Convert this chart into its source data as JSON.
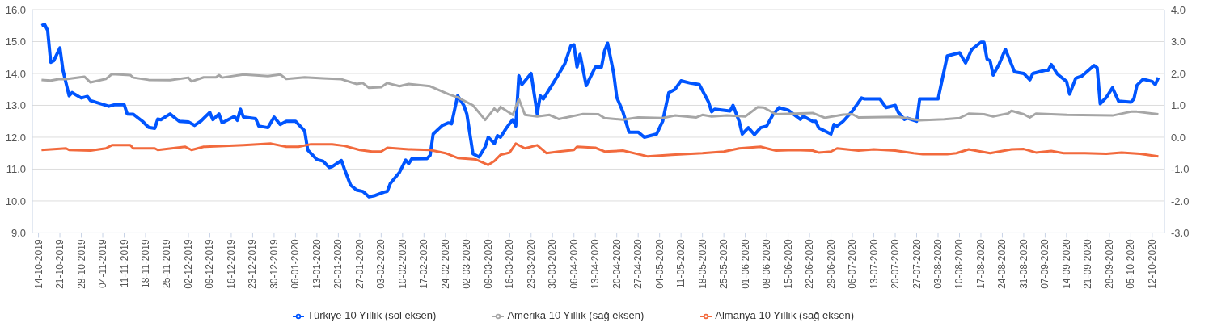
{
  "chart_data": {
    "type": "line",
    "xlim": [
      "2019-10-12",
      "2020-10-16"
    ],
    "xticks": [
      {
        "value": "2019-10-14",
        "label": "14-10-2019"
      },
      {
        "value": "2019-10-21",
        "label": "21-10-2019"
      },
      {
        "value": "2019-10-28",
        "label": "28-10-2019"
      },
      {
        "value": "2019-11-04",
        "label": "04-11-2019"
      },
      {
        "value": "2019-11-11",
        "label": "11-11-2019"
      },
      {
        "value": "2019-11-18",
        "label": "18-11-2019"
      },
      {
        "value": "2019-11-25",
        "label": "25-11-2019"
      },
      {
        "value": "2019-12-02",
        "label": "02-12-2019"
      },
      {
        "value": "2019-12-09",
        "label": "09-12-2019"
      },
      {
        "value": "2019-12-16",
        "label": "16-12-2019"
      },
      {
        "value": "2019-12-23",
        "label": "23-12-2019"
      },
      {
        "value": "2019-12-30",
        "label": "30-12-2019"
      },
      {
        "value": "2020-01-06",
        "label": "06-01-2020"
      },
      {
        "value": "2020-01-13",
        "label": "13-01-2020"
      },
      {
        "value": "2020-01-20",
        "label": "20-01-2020"
      },
      {
        "value": "2020-01-27",
        "label": "27-01-2020"
      },
      {
        "value": "2020-02-03",
        "label": "03-02-2020"
      },
      {
        "value": "2020-02-10",
        "label": "10-02-2020"
      },
      {
        "value": "2020-02-17",
        "label": "17-02-2020"
      },
      {
        "value": "2020-02-24",
        "label": "24-02-2020"
      },
      {
        "value": "2020-03-02",
        "label": "02-03-2020"
      },
      {
        "value": "2020-03-09",
        "label": "09-03-2020"
      },
      {
        "value": "2020-03-16",
        "label": "16-03-2020"
      },
      {
        "value": "2020-03-23",
        "label": "23-03-2020"
      },
      {
        "value": "2020-03-30",
        "label": "30-03-2020"
      },
      {
        "value": "2020-04-06",
        "label": "06-04-2020"
      },
      {
        "value": "2020-04-13",
        "label": "13-04-2020"
      },
      {
        "value": "2020-04-20",
        "label": "20-04-2020"
      },
      {
        "value": "2020-04-27",
        "label": "27-04-2020"
      },
      {
        "value": "2020-05-04",
        "label": "04-05-2020"
      },
      {
        "value": "2020-05-11",
        "label": "11-05-2020"
      },
      {
        "value": "2020-05-18",
        "label": "18-05-2020"
      },
      {
        "value": "2020-05-25",
        "label": "25-05-2020"
      },
      {
        "value": "2020-06-01",
        "label": "01-06-2020"
      },
      {
        "value": "2020-06-08",
        "label": "08-06-2020"
      },
      {
        "value": "2020-06-15",
        "label": "15-06-2020"
      },
      {
        "value": "2020-06-22",
        "label": "22-06-2020"
      },
      {
        "value": "2020-06-29",
        "label": "29-06-2020"
      },
      {
        "value": "2020-07-06",
        "label": "06-07-2020"
      },
      {
        "value": "2020-07-13",
        "label": "13-07-2020"
      },
      {
        "value": "2020-07-20",
        "label": "20-07-2020"
      },
      {
        "value": "2020-07-27",
        "label": "27-07-2020"
      },
      {
        "value": "2020-08-03",
        "label": "03-08-2020"
      },
      {
        "value": "2020-08-10",
        "label": "10-08-2020"
      },
      {
        "value": "2020-08-17",
        "label": "17-08-2020"
      },
      {
        "value": "2020-08-24",
        "label": "24-08-2020"
      },
      {
        "value": "2020-08-31",
        "label": "31-08-2020"
      },
      {
        "value": "2020-09-07",
        "label": "07-09-2020"
      },
      {
        "value": "2020-09-14",
        "label": "14-09-2020"
      },
      {
        "value": "2020-09-21",
        "label": "21-09-2020"
      },
      {
        "value": "2020-09-28",
        "label": "28-09-2020"
      },
      {
        "value": "2020-10-05",
        "label": "05-10-2020"
      },
      {
        "value": "2020-10-12",
        "label": "12-10-2020"
      }
    ],
    "ylim": [
      9,
      16
    ],
    "yticks": [
      {
        "value": 9,
        "label": "9.0"
      },
      {
        "value": 10,
        "label": "10.0"
      },
      {
        "value": 11,
        "label": "11.0"
      },
      {
        "value": 12,
        "label": "12.0"
      },
      {
        "value": 13,
        "label": "13.0"
      },
      {
        "value": 14,
        "label": "14.0"
      },
      {
        "value": 15,
        "label": "15.0"
      },
      {
        "value": 16,
        "label": "16.0"
      }
    ],
    "y2lim": [
      -3,
      4
    ],
    "y2ticks": [
      {
        "value": -3,
        "label": "-3.0"
      },
      {
        "value": -2,
        "label": "-2.0"
      },
      {
        "value": -1,
        "label": "-1.0"
      },
      {
        "value": 0,
        "label": "0.0"
      },
      {
        "value": 1,
        "label": "1.0"
      },
      {
        "value": 2,
        "label": "2.0"
      },
      {
        "value": 3,
        "label": "3.0"
      },
      {
        "value": 4,
        "label": "4.0"
      }
    ],
    "grid": "y",
    "legend": "bottom",
    "marker": "none",
    "line_style": "solid",
    "series": [
      {
        "name": "Türkiye 10 Yıllık (sol eksen)",
        "color": "#0055ff",
        "x": [
          "2019-10-15",
          "2019-10-16",
          "2019-10-17",
          "2019-10-18",
          "2019-10-19",
          "2019-10-21",
          "2019-10-22",
          "2019-10-24",
          "2019-10-25",
          "2019-10-28",
          "2019-10-30",
          "2019-10-31",
          "2019-11-06",
          "2019-11-08",
          "2019-11-11",
          "2019-11-12",
          "2019-11-14",
          "2019-11-17",
          "2019-11-19",
          "2019-11-21",
          "2019-11-22",
          "2019-11-23",
          "2019-11-26",
          "2019-11-29",
          "2019-12-02",
          "2019-12-04",
          "2019-12-06",
          "2019-12-09",
          "2019-12-10",
          "2019-12-12",
          "2019-12-13",
          "2019-12-17",
          "2019-12-18",
          "2019-12-19",
          "2019-12-20",
          "2019-12-24",
          "2019-12-25",
          "2019-12-28",
          "2019-12-30",
          "2020-01-01",
          "2020-01-03",
          "2020-01-06",
          "2020-01-09",
          "2020-01-10",
          "2020-01-13",
          "2020-01-15",
          "2020-01-17",
          "2020-01-18",
          "2020-01-21",
          "2020-01-22",
          "2020-01-24",
          "2020-01-26",
          "2020-01-28",
          "2020-01-30",
          "2020-02-01",
          "2020-02-04",
          "2020-02-05",
          "2020-02-06",
          "2020-02-09",
          "2020-02-11",
          "2020-02-12",
          "2020-02-13",
          "2020-02-18",
          "2020-02-19",
          "2020-02-20",
          "2020-02-23",
          "2020-02-25",
          "2020-02-26",
          "2020-02-28",
          "2020-03-01",
          "2020-03-02",
          "2020-03-04",
          "2020-03-06",
          "2020-03-08",
          "2020-03-09",
          "2020-03-11",
          "2020-03-12",
          "2020-03-13",
          "2020-03-15",
          "2020-03-17",
          "2020-03-18",
          "2020-03-19",
          "2020-03-20",
          "2020-03-23",
          "2020-03-25",
          "2020-03-26",
          "2020-03-27",
          "2020-03-31",
          "2020-04-03",
          "2020-04-05",
          "2020-04-06",
          "2020-04-07",
          "2020-04-08",
          "2020-04-10",
          "2020-04-13",
          "2020-04-15",
          "2020-04-16",
          "2020-04-17",
          "2020-04-19",
          "2020-04-20",
          "2020-04-22",
          "2020-04-24",
          "2020-04-27",
          "2020-04-29",
          "2020-05-03",
          "2020-05-05",
          "2020-05-07",
          "2020-05-09",
          "2020-05-11",
          "2020-05-14",
          "2020-05-17",
          "2020-05-20",
          "2020-05-21",
          "2020-05-22",
          "2020-05-27",
          "2020-05-28",
          "2020-05-30",
          "2020-05-31",
          "2020-06-02",
          "2020-06-04",
          "2020-06-06",
          "2020-06-08",
          "2020-06-10",
          "2020-06-12",
          "2020-06-15",
          "2020-06-19",
          "2020-06-20",
          "2020-06-23",
          "2020-06-24",
          "2020-06-25",
          "2020-06-29",
          "2020-06-30",
          "2020-07-01",
          "2020-07-03",
          "2020-07-06",
          "2020-07-09",
          "2020-07-10",
          "2020-07-15",
          "2020-07-17",
          "2020-07-20",
          "2020-07-21",
          "2020-07-23",
          "2020-07-24",
          "2020-07-27",
          "2020-07-28",
          "2020-07-29",
          "2020-08-03",
          "2020-08-06",
          "2020-08-10",
          "2020-08-12",
          "2020-08-14",
          "2020-08-17",
          "2020-08-18",
          "2020-08-19",
          "2020-08-20",
          "2020-08-21",
          "2020-08-23",
          "2020-08-25",
          "2020-08-28",
          "2020-08-31",
          "2020-09-02",
          "2020-09-03",
          "2020-09-07",
          "2020-09-08",
          "2020-09-09",
          "2020-09-11",
          "2020-09-14",
          "2020-09-15",
          "2020-09-17",
          "2020-09-19",
          "2020-09-23",
          "2020-09-24",
          "2020-09-25",
          "2020-09-27",
          "2020-09-29",
          "2020-10-01",
          "2020-10-05",
          "2020-10-06",
          "2020-10-07",
          "2020-10-09",
          "2020-10-12",
          "2020-10-13",
          "2020-10-14"
        ],
        "values": [
          15.5,
          15.54,
          15.35,
          14.35,
          14.4,
          14.8,
          14.1,
          13.3,
          13.4,
          13.23,
          13.28,
          13.15,
          12.97,
          13.02,
          13.02,
          12.73,
          12.72,
          12.5,
          12.31,
          12.28,
          12.57,
          12.55,
          12.73,
          12.5,
          12.48,
          12.37,
          12.5,
          12.78,
          12.55,
          12.73,
          12.45,
          12.65,
          12.53,
          12.88,
          12.63,
          12.58,
          12.35,
          12.3,
          12.63,
          12.4,
          12.5,
          12.5,
          12.2,
          11.6,
          11.3,
          11.25,
          11.05,
          11.08,
          11.27,
          11.0,
          10.5,
          10.34,
          10.3,
          10.13,
          10.17,
          10.28,
          10.3,
          10.55,
          10.9,
          11.28,
          11.17,
          11.32,
          11.33,
          11.43,
          12.1,
          12.37,
          12.45,
          12.42,
          13.3,
          13.0,
          12.73,
          11.48,
          11.38,
          11.7,
          12.0,
          11.8,
          12.05,
          12.0,
          12.3,
          12.55,
          12.35,
          13.93,
          13.65,
          14.0,
          12.73,
          13.3,
          13.2,
          13.82,
          14.3,
          14.87,
          14.9,
          14.2,
          14.6,
          13.62,
          14.2,
          14.2,
          14.7,
          14.95,
          14.0,
          13.25,
          12.8,
          12.16,
          12.16,
          12.0,
          12.1,
          12.5,
          13.4,
          13.5,
          13.77,
          13.7,
          13.65,
          13.1,
          12.8,
          12.88,
          12.82,
          13.0,
          12.5,
          12.1,
          12.3,
          12.08,
          12.3,
          12.35,
          12.7,
          12.93,
          12.85,
          12.56,
          12.66,
          12.5,
          12.5,
          12.29,
          12.1,
          12.4,
          12.35,
          12.5,
          12.82,
          13.23,
          13.2,
          13.2,
          12.93,
          13.0,
          12.78,
          12.56,
          12.6,
          12.5,
          13.2,
          13.2,
          13.2,
          14.55,
          14.65,
          14.33,
          14.75,
          14.98,
          14.98,
          14.45,
          14.4,
          13.95,
          14.3,
          14.76,
          14.05,
          14.0,
          13.8,
          14.0,
          14.1,
          14.1,
          14.28,
          13.98,
          13.75,
          13.35,
          13.85,
          13.92,
          14.25,
          14.18,
          13.05,
          13.25,
          13.55,
          13.13,
          13.1,
          13.2,
          13.63,
          13.82,
          13.75,
          13.65,
          13.87
        ]
      },
      {
        "name": "Amerika 10 Yıllık (sağ eksen)",
        "color": "#a6a6a6",
        "axis": "y2",
        "x": [
          "2019-10-15",
          "2019-10-18",
          "2019-10-21",
          "2019-10-23",
          "2019-10-29",
          "2019-10-31",
          "2019-11-05",
          "2019-11-06",
          "2019-11-07",
          "2019-11-13",
          "2019-11-14",
          "2019-11-19",
          "2019-11-26",
          "2019-12-02",
          "2019-12-03",
          "2019-12-07",
          "2019-12-11",
          "2019-12-12",
          "2019-12-13",
          "2019-12-20",
          "2019-12-28",
          "2020-01-01",
          "2020-01-03",
          "2020-01-09",
          "2020-01-15",
          "2020-01-21",
          "2020-01-26",
          "2020-01-28",
          "2020-01-30",
          "2020-02-03",
          "2020-02-05",
          "2020-02-09",
          "2020-02-12",
          "2020-02-19",
          "2020-02-25",
          "2020-02-28",
          "2020-03-04",
          "2020-03-08",
          "2020-03-11",
          "2020-03-12",
          "2020-03-13",
          "2020-03-17",
          "2020-03-19",
          "2020-03-21",
          "2020-03-25",
          "2020-03-29",
          "2020-04-01",
          "2020-04-09",
          "2020-04-14",
          "2020-04-16",
          "2020-04-22",
          "2020-04-27",
          "2020-05-05",
          "2020-05-09",
          "2020-05-16",
          "2020-05-18",
          "2020-05-21",
          "2020-05-26",
          "2020-06-01",
          "2020-06-05",
          "2020-06-07",
          "2020-06-11",
          "2020-06-23",
          "2020-06-27",
          "2020-07-03",
          "2020-07-06",
          "2020-07-08",
          "2020-07-21",
          "2020-07-28",
          "2020-08-05",
          "2020-08-10",
          "2020-08-13",
          "2020-08-18",
          "2020-08-21",
          "2020-08-26",
          "2020-08-27",
          "2020-08-31",
          "2020-09-02",
          "2020-09-04",
          "2020-09-14",
          "2020-09-29",
          "2020-10-05",
          "2020-10-07",
          "2020-10-14"
        ],
        "values": [
          1.8,
          1.78,
          1.83,
          1.82,
          1.9,
          1.72,
          1.83,
          1.9,
          1.98,
          1.95,
          1.87,
          1.8,
          1.79,
          1.87,
          1.75,
          1.88,
          1.88,
          1.95,
          1.87,
          1.97,
          1.92,
          1.97,
          1.83,
          1.88,
          1.85,
          1.82,
          1.67,
          1.7,
          1.55,
          1.57,
          1.7,
          1.6,
          1.67,
          1.6,
          1.35,
          1.25,
          1.0,
          0.54,
          0.9,
          0.8,
          0.95,
          0.7,
          1.2,
          0.7,
          0.65,
          0.7,
          0.57,
          0.73,
          0.72,
          0.6,
          0.55,
          0.62,
          0.6,
          0.68,
          0.62,
          0.7,
          0.65,
          0.68,
          0.65,
          0.94,
          0.93,
          0.72,
          0.76,
          0.61,
          0.71,
          0.72,
          0.62,
          0.64,
          0.53,
          0.56,
          0.6,
          0.74,
          0.72,
          0.65,
          0.75,
          0.83,
          0.72,
          0.62,
          0.74,
          0.7,
          0.68,
          0.8,
          0.8,
          0.72
        ]
      },
      {
        "name": "Almanya 10 Yıllık (sağ eksen)",
        "color": "#f26a3d",
        "axis": "y2",
        "x": [
          "2019-10-15",
          "2019-10-23",
          "2019-10-24",
          "2019-10-31",
          "2019-11-05",
          "2019-11-07",
          "2019-11-13",
          "2019-11-14",
          "2019-11-21",
          "2019-11-22",
          "2019-12-01",
          "2019-12-03",
          "2019-12-07",
          "2019-12-20",
          "2019-12-29",
          "2020-01-03",
          "2020-01-07",
          "2020-01-11",
          "2020-01-18",
          "2020-01-22",
          "2020-01-27",
          "2020-01-31",
          "2020-02-03",
          "2020-02-05",
          "2020-02-12",
          "2020-02-19",
          "2020-02-24",
          "2020-02-28",
          "2020-03-05",
          "2020-03-09",
          "2020-03-11",
          "2020-03-13",
          "2020-03-16",
          "2020-03-18",
          "2020-03-21",
          "2020-03-25",
          "2020-03-28",
          "2020-04-01",
          "2020-04-06",
          "2020-04-07",
          "2020-04-13",
          "2020-04-16",
          "2020-04-22",
          "2020-04-30",
          "2020-05-08",
          "2020-05-18",
          "2020-05-25",
          "2020-05-30",
          "2020-06-06",
          "2020-06-08",
          "2020-06-11",
          "2020-06-17",
          "2020-06-23",
          "2020-06-25",
          "2020-06-29",
          "2020-07-01",
          "2020-07-08",
          "2020-07-13",
          "2020-07-20",
          "2020-07-26",
          "2020-07-29",
          "2020-08-06",
          "2020-08-09",
          "2020-08-13",
          "2020-08-20",
          "2020-08-27",
          "2020-08-31",
          "2020-09-04",
          "2020-09-09",
          "2020-09-13",
          "2020-09-20",
          "2020-09-27",
          "2020-10-02",
          "2020-10-08",
          "2020-10-14"
        ],
        "values": [
          -0.4,
          -0.35,
          -0.4,
          -0.42,
          -0.35,
          -0.25,
          -0.25,
          -0.35,
          -0.35,
          -0.4,
          -0.3,
          -0.4,
          -0.3,
          -0.25,
          -0.2,
          -0.3,
          -0.3,
          -0.22,
          -0.22,
          -0.27,
          -0.4,
          -0.45,
          -0.45,
          -0.33,
          -0.38,
          -0.4,
          -0.5,
          -0.65,
          -0.7,
          -0.87,
          -0.75,
          -0.55,
          -0.48,
          -0.2,
          -0.35,
          -0.25,
          -0.5,
          -0.45,
          -0.4,
          -0.3,
          -0.33,
          -0.45,
          -0.42,
          -0.6,
          -0.55,
          -0.5,
          -0.45,
          -0.35,
          -0.3,
          -0.35,
          -0.42,
          -0.4,
          -0.42,
          -0.48,
          -0.45,
          -0.35,
          -0.42,
          -0.38,
          -0.42,
          -0.5,
          -0.53,
          -0.53,
          -0.5,
          -0.38,
          -0.5,
          -0.38,
          -0.37,
          -0.48,
          -0.43,
          -0.5,
          -0.5,
          -0.52,
          -0.48,
          -0.52,
          -0.6
        ]
      }
    ]
  }
}
